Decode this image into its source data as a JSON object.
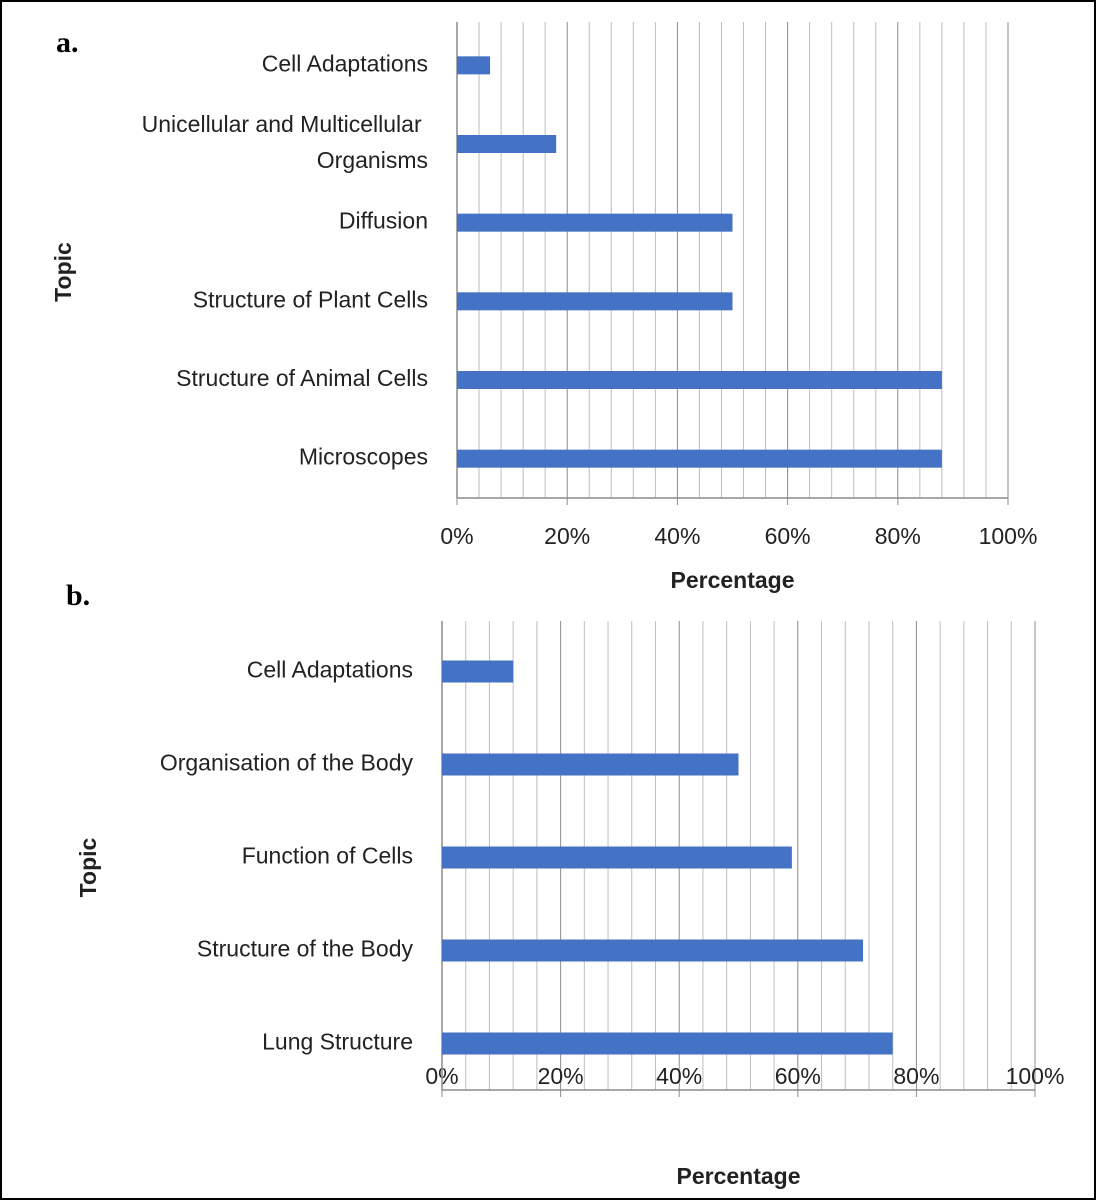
{
  "chart_data": [
    {
      "type": "bar",
      "orientation": "horizontal",
      "panel_label": "a.",
      "xlabel": "Percentage",
      "ylabel": "Topic",
      "categories": [
        "Cell Adaptations",
        "Unicellular and Multicellular Organisms",
        "Diffusion",
        "Structure of Plant Cells",
        "Structure of Animal Cells",
        "Microscopes"
      ],
      "values": [
        6,
        18,
        50,
        50,
        88,
        88
      ],
      "color": "#4472c4",
      "xlim": [
        0,
        100
      ],
      "xticks": [
        {
          "value": 0,
          "label": "0%"
        },
        {
          "value": 20,
          "label": "20%"
        },
        {
          "value": 40,
          "label": "40%"
        },
        {
          "value": 60,
          "label": "60%"
        },
        {
          "value": 80,
          "label": "80%"
        },
        {
          "value": 100,
          "label": "100%"
        }
      ],
      "minor_xticks": [
        4,
        8,
        12,
        16,
        24,
        28,
        32,
        36,
        44,
        48,
        52,
        56,
        64,
        68,
        72,
        76,
        84,
        88,
        92,
        96
      ],
      "grid": true
    },
    {
      "type": "bar",
      "orientation": "horizontal",
      "panel_label": "b.",
      "xlabel": "Percentage",
      "ylabel": "Topic",
      "categories": [
        "Cell Adaptations",
        "Organisation of the Body",
        "Function of Cells",
        "Structure of the Body",
        "Lung Structure"
      ],
      "values": [
        12,
        50,
        59,
        71,
        76
      ],
      "color": "#4472c4",
      "xlim": [
        0,
        100
      ],
      "xticks": [
        {
          "value": 0,
          "label": "0%"
        },
        {
          "value": 20,
          "label": "20%"
        },
        {
          "value": 40,
          "label": "40%"
        },
        {
          "value": 60,
          "label": "60%"
        },
        {
          "value": 80,
          "label": "80%"
        },
        {
          "value": 100,
          "label": "100%"
        }
      ],
      "minor_xticks": [
        4,
        8,
        12,
        16,
        24,
        28,
        32,
        36,
        44,
        48,
        52,
        56,
        64,
        68,
        72,
        76,
        84,
        88,
        92,
        96
      ],
      "grid": true
    }
  ]
}
